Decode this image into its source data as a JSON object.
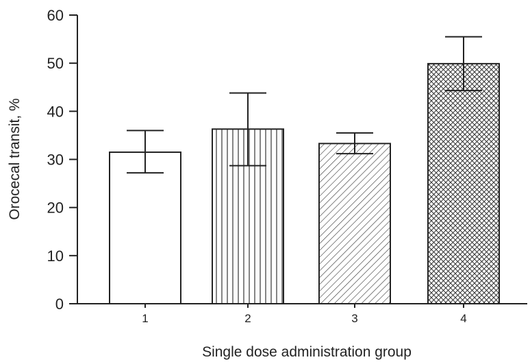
{
  "chart_data": {
    "type": "bar",
    "title": "",
    "xlabel": "Single dose administration group",
    "ylabel": "Orocecal transit, %",
    "ylim": [
      0,
      60
    ],
    "yticks": [
      0,
      10,
      20,
      30,
      40,
      50,
      60
    ],
    "categories": [
      "1",
      "2",
      "3",
      "4"
    ],
    "values": [
      31.5,
      36.3,
      33.3,
      49.9
    ],
    "error_low": [
      27.2,
      28.7,
      31.2,
      44.3
    ],
    "error_high": [
      36.0,
      43.8,
      35.5,
      55.5
    ],
    "patterns": [
      "none",
      "vertical-lines",
      "diagonal-lines",
      "crosshatch"
    ],
    "grid": false,
    "legend": "none",
    "colors": {
      "bar_stroke": "#222222",
      "bar_fill": "#ffffff",
      "axis": "#222222"
    }
  }
}
